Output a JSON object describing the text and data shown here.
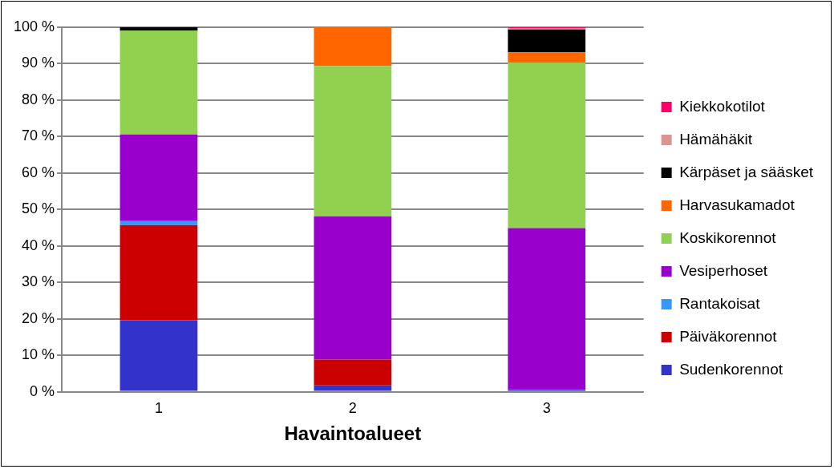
{
  "chart_data": {
    "type": "bar",
    "stacked": true,
    "xlabel": "Havaintoalueet",
    "categories": [
      "1",
      "2",
      "3"
    ],
    "ylim": [
      0,
      100
    ],
    "yticks": [
      {
        "value": 0,
        "label": "0 %"
      },
      {
        "value": 10,
        "label": "10 %"
      },
      {
        "value": 20,
        "label": "20 %"
      },
      {
        "value": 30,
        "label": "30 %"
      },
      {
        "value": 40,
        "label": "40 %"
      },
      {
        "value": 50,
        "label": "50 %"
      },
      {
        "value": 60,
        "label": "60 %"
      },
      {
        "value": 70,
        "label": "70 %"
      },
      {
        "value": 80,
        "label": "80 %"
      },
      {
        "value": 90,
        "label": "90 %"
      },
      {
        "value": 100,
        "label": "100 %"
      }
    ],
    "grid": "y",
    "legend": "right",
    "series": [
      {
        "name": "Sudenkorennot",
        "color": "#3333cc",
        "values": [
          19.6,
          1.7,
          0.6
        ]
      },
      {
        "name": "Päiväkorennot",
        "color": "#cc0000",
        "values": [
          26.1,
          7.1,
          0
        ]
      },
      {
        "name": "Rantakoisat",
        "color": "#3399ff",
        "values": [
          1.1,
          0,
          0
        ]
      },
      {
        "name": "Vesiperhoset",
        "color": "#9900cc",
        "values": [
          23.8,
          39.3,
          44.3
        ]
      },
      {
        "name": "Koskikorennot",
        "color": "#92d050",
        "values": [
          28.5,
          41.3,
          45.4
        ]
      },
      {
        "name": "Harvasukamadot",
        "color": "#ff6600",
        "values": [
          0,
          10.6,
          2.8
        ]
      },
      {
        "name": "Kärpäset ja sääsket",
        "color": "#000000",
        "values": [
          0.9,
          0,
          6.3
        ]
      },
      {
        "name": "Hämähäkit",
        "color": "#d99594",
        "values": [
          0,
          0,
          0.4
        ]
      },
      {
        "name": "Kiekkokotilot",
        "color": "#ff0066",
        "values": [
          0,
          0,
          0.2
        ]
      }
    ]
  }
}
